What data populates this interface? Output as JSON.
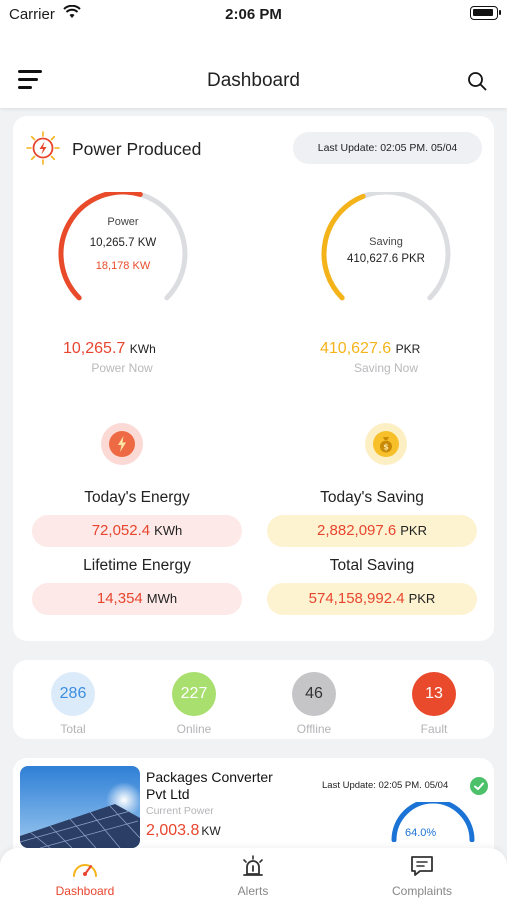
{
  "status_bar": {
    "carrier": "Carrier",
    "time": "2:06 PM"
  },
  "header": {
    "title": "Dashboard"
  },
  "power_card": {
    "title": "Power Produced",
    "last_update": "Last Update: 02:05 PM. 05/04",
    "power_gauge": {
      "label": "Power",
      "value": "10,265.7 KW",
      "secondary": "18,178 KW",
      "fill_fraction": 0.56,
      "color": "#e84a2a"
    },
    "saving_gauge": {
      "label": "Saving",
      "value": "410,627.6 PKR",
      "fill_fraction": 0.42,
      "color": "#f5b31a"
    },
    "power_now": {
      "value": "10,265.7",
      "unit": "KWh",
      "caption": "Power Now"
    },
    "saving_now": {
      "value": "410,627.6",
      "unit": "PKR",
      "caption": "Saving Now"
    },
    "todays_energy": {
      "title": "Today's Energy",
      "value": "72,052.4",
      "unit": "KWh"
    },
    "todays_saving": {
      "title": "Today's Saving",
      "value": "2,882,097.6",
      "unit": "PKR"
    },
    "lifetime_energy": {
      "title": "Lifetime Energy",
      "value": "14,354",
      "unit": "MWh"
    },
    "total_saving": {
      "title": "Total Saving",
      "value": "574,158,992.4",
      "unit": "PKR"
    }
  },
  "stats": [
    {
      "value": "286",
      "label": "Total",
      "bg": "#dcebfa",
      "fg": "#3d8ee0"
    },
    {
      "value": "227",
      "label": "Online",
      "bg": "#a8df6e",
      "fg": "#ffffff"
    },
    {
      "value": "46",
      "label": "Offline",
      "bg": "#c5c5c7",
      "fg": "#333333"
    },
    {
      "value": "13",
      "label": "Fault",
      "bg": "#ea4a2c",
      "fg": "#ffffff"
    }
  ],
  "plant": {
    "name": "Packages Converter Pvt Ltd",
    "current_power_label": "Current Power",
    "current_power_value": "2,003.8",
    "current_power_unit": "KW",
    "last_update": "Last Update: 02:05 PM. 05/04",
    "percent": "64.0%"
  },
  "tabs": [
    {
      "label": "Dashboard",
      "icon": "gauge-icon",
      "active": true
    },
    {
      "label": "Alerts",
      "icon": "alarm-icon",
      "active": false
    },
    {
      "label": "Complaints",
      "icon": "chat-icon",
      "active": false
    }
  ],
  "colors": {
    "accent": "#e8452e",
    "saving": "#f5b31a",
    "gauge_track": "#dcdde0",
    "blue": "#1c73d6"
  }
}
